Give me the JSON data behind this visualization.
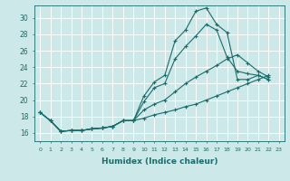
{
  "xlabel": "Humidex (Indice chaleur)",
  "xlim": [
    -0.5,
    23.5
  ],
  "ylim": [
    15.0,
    31.5
  ],
  "yticks": [
    16,
    18,
    20,
    22,
    24,
    26,
    28,
    30
  ],
  "xticks": [
    0,
    1,
    2,
    3,
    4,
    5,
    6,
    7,
    8,
    9,
    10,
    11,
    12,
    13,
    14,
    15,
    16,
    17,
    18,
    19,
    20,
    21,
    22,
    23
  ],
  "bg_color": "#cce8e8",
  "line_color": "#1a6b6b",
  "grid_color": "#b0d8d8",
  "series": [
    [
      18.5,
      17.5,
      16.2,
      16.3,
      16.3,
      16.5,
      16.6,
      16.8,
      17.5,
      17.5,
      20.5,
      22.2,
      23.0,
      27.2,
      28.5,
      30.8,
      31.2,
      29.2,
      28.2,
      22.5,
      22.5,
      23.0,
      22.5
    ],
    [
      18.5,
      17.5,
      16.2,
      16.3,
      16.3,
      16.5,
      16.6,
      16.8,
      17.5,
      17.5,
      19.8,
      21.5,
      22.0,
      25.0,
      26.5,
      27.8,
      29.2,
      28.5,
      25.2,
      23.5,
      23.2,
      23.0,
      22.5
    ],
    [
      18.5,
      17.5,
      16.2,
      16.3,
      16.3,
      16.5,
      16.6,
      16.8,
      17.5,
      17.5,
      18.8,
      19.5,
      20.0,
      21.0,
      22.0,
      22.8,
      23.5,
      24.2,
      25.0,
      25.5,
      24.5,
      23.5,
      22.8
    ],
    [
      18.5,
      17.5,
      16.2,
      16.3,
      16.3,
      16.5,
      16.6,
      16.8,
      17.5,
      17.5,
      17.8,
      18.2,
      18.5,
      18.8,
      19.2,
      19.5,
      20.0,
      20.5,
      21.0,
      21.5,
      22.0,
      22.5,
      23.0
    ]
  ]
}
